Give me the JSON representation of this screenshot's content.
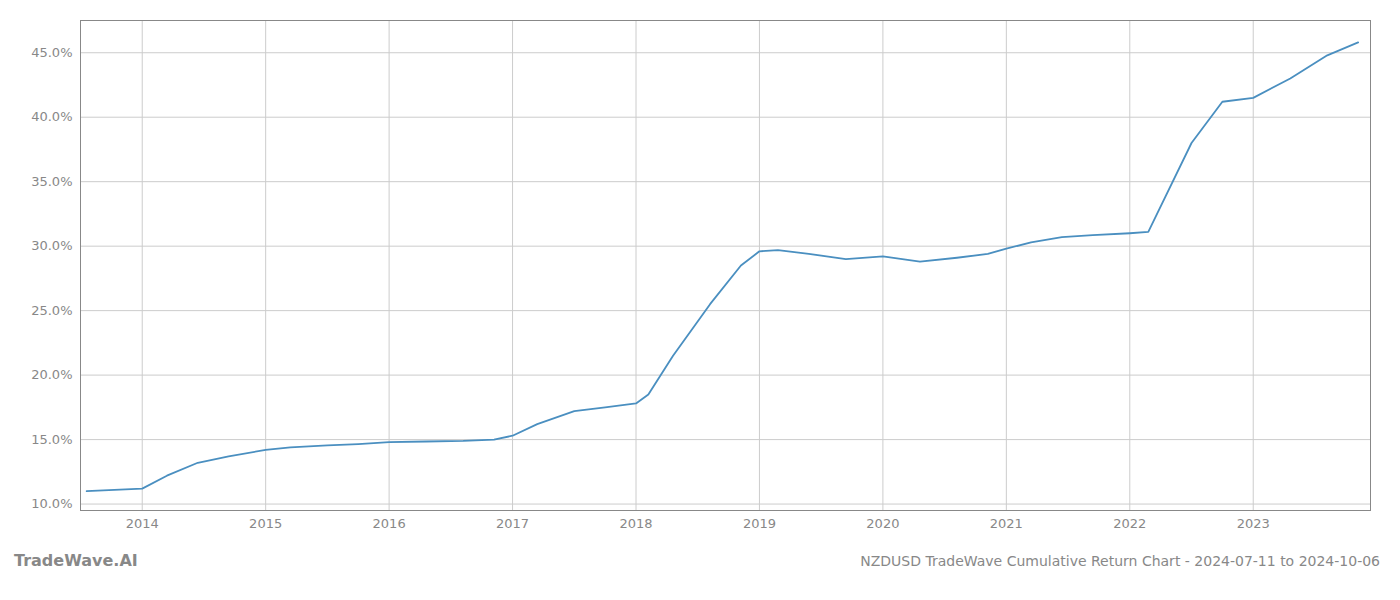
{
  "chart_data": {
    "type": "line",
    "title": "NZDUSD TradeWave Cumulative Return Chart - 2024-07-11 to 2024-10-06",
    "annotations": [
      "TradeWave.AI"
    ],
    "x": [
      2013.55,
      2014.0,
      2014.2,
      2014.45,
      2014.7,
      2015.0,
      2015.2,
      2015.5,
      2015.75,
      2016.0,
      2016.3,
      2016.6,
      2016.85,
      2017.0,
      2017.2,
      2017.5,
      2017.75,
      2018.0,
      2018.1,
      2018.3,
      2018.6,
      2018.85,
      2019.0,
      2019.15,
      2019.4,
      2019.7,
      2020.0,
      2020.3,
      2020.6,
      2020.85,
      2021.0,
      2021.2,
      2021.45,
      2021.7,
      2022.0,
      2022.15,
      2022.5,
      2022.75,
      2023.0,
      2023.3,
      2023.6,
      2023.85
    ],
    "values": [
      11.0,
      11.2,
      12.2,
      13.2,
      13.7,
      14.2,
      14.4,
      14.55,
      14.65,
      14.8,
      14.85,
      14.9,
      15.0,
      15.3,
      16.2,
      17.2,
      17.5,
      17.8,
      18.5,
      21.5,
      25.5,
      28.5,
      29.6,
      29.7,
      29.4,
      29.0,
      29.2,
      28.8,
      29.1,
      29.4,
      29.8,
      30.3,
      30.7,
      30.85,
      31.0,
      31.1,
      38.0,
      41.2,
      41.5,
      43.0,
      44.8,
      45.8
    ],
    "color": "#4a8fc0",
    "xlim": [
      2013.5,
      2023.95
    ],
    "xticks": [
      2014,
      2015,
      2016,
      2017,
      2018,
      2019,
      2020,
      2021,
      2022,
      2023
    ],
    "ylim": [
      9.5,
      47.5
    ],
    "yticks": [
      {
        "value": 10.0,
        "label": "10.0%"
      },
      {
        "value": 15.0,
        "label": "15.0%"
      },
      {
        "value": 20.0,
        "label": "20.0%"
      },
      {
        "value": 25.0,
        "label": "25.0%"
      },
      {
        "value": 30.0,
        "label": "30.0%"
      },
      {
        "value": 35.0,
        "label": "35.0%"
      },
      {
        "value": 40.0,
        "label": "40.0%"
      },
      {
        "value": 45.0,
        "label": "45.0%"
      }
    ],
    "grid": true
  }
}
